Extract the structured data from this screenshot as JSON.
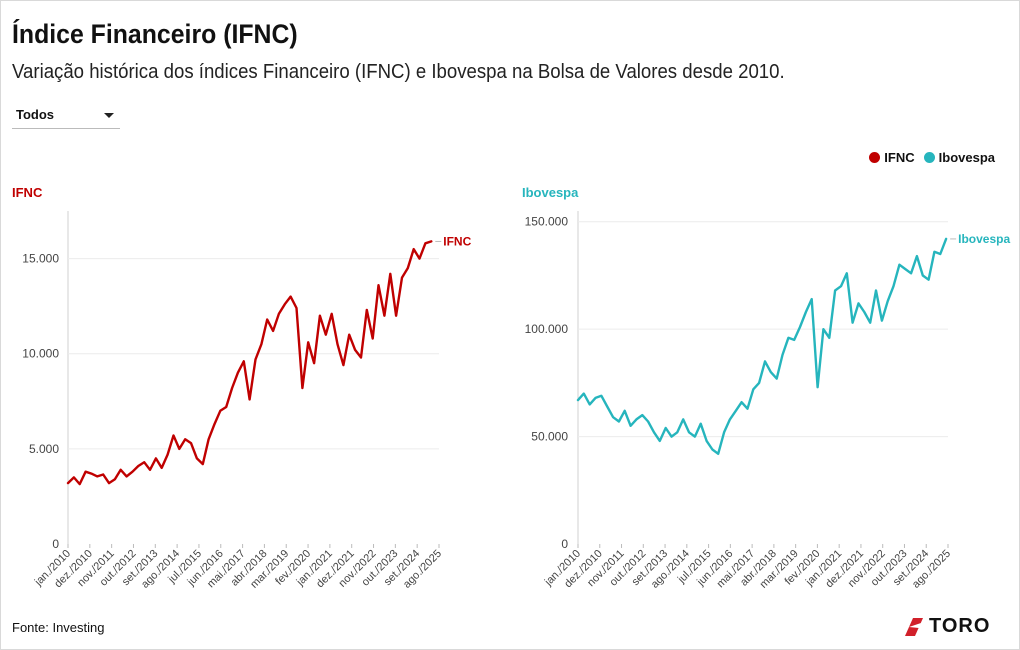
{
  "header": {
    "title": "Índice Financeiro (IFNC)",
    "subtitle": "Variação histórica dos índices Financeiro (IFNC) e Ibovespa na Bolsa de Valores desde 2010."
  },
  "filter": {
    "selected": "Todos"
  },
  "legend": [
    {
      "label": "IFNC",
      "color": "#c00000"
    },
    {
      "label": "Ibovespa",
      "color": "#26b5bd"
    }
  ],
  "footer": {
    "source": "Fonte: Investing",
    "logo_text": "TORO"
  },
  "chart_data": [
    {
      "type": "line",
      "panel_title": "IFNC",
      "color": "#c00000",
      "end_label": "IFNC",
      "ylim": [
        0,
        17500
      ],
      "yticks": [
        0,
        5000,
        10000,
        15000
      ],
      "ytick_labels": [
        "0",
        "5.000",
        "10.000",
        "15.000"
      ],
      "xticks": [
        "jan./2010",
        "dez./2010",
        "nov./2011",
        "out./2012",
        "set./2013",
        "ago./2014",
        "jul./2015",
        "jun./2016",
        "mai./2017",
        "abr./2018",
        "mar./2019",
        "fev./2020",
        "jan./2021",
        "dez./2021",
        "nov./2022",
        "out./2023",
        "set./2024",
        "ago./2025"
      ],
      "x_start": 2010.0,
      "x_end": 2025.83,
      "series": [
        {
          "values": [
            [
              2010.0,
              3200
            ],
            [
              2010.25,
              3500
            ],
            [
              2010.5,
              3150
            ],
            [
              2010.75,
              3800
            ],
            [
              2011.0,
              3700
            ],
            [
              2011.25,
              3550
            ],
            [
              2011.5,
              3650
            ],
            [
              2011.75,
              3200
            ],
            [
              2012.0,
              3400
            ],
            [
              2012.25,
              3900
            ],
            [
              2012.5,
              3550
            ],
            [
              2012.75,
              3800
            ],
            [
              2013.0,
              4100
            ],
            [
              2013.25,
              4300
            ],
            [
              2013.5,
              3900
            ],
            [
              2013.75,
              4500
            ],
            [
              2014.0,
              4000
            ],
            [
              2014.25,
              4700
            ],
            [
              2014.5,
              5700
            ],
            [
              2014.75,
              5000
            ],
            [
              2015.0,
              5500
            ],
            [
              2015.25,
              5300
            ],
            [
              2015.5,
              4500
            ],
            [
              2015.75,
              4200
            ],
            [
              2016.0,
              5500
            ],
            [
              2016.25,
              6300
            ],
            [
              2016.5,
              7000
            ],
            [
              2016.75,
              7200
            ],
            [
              2017.0,
              8200
            ],
            [
              2017.25,
              9000
            ],
            [
              2017.5,
              9600
            ],
            [
              2017.75,
              7600
            ],
            [
              2018.0,
              9700
            ],
            [
              2018.25,
              10500
            ],
            [
              2018.5,
              11800
            ],
            [
              2018.75,
              11200
            ],
            [
              2019.0,
              12100
            ],
            [
              2019.25,
              12600
            ],
            [
              2019.5,
              13000
            ],
            [
              2019.75,
              12400
            ],
            [
              2020.0,
              8200
            ],
            [
              2020.25,
              10600
            ],
            [
              2020.5,
              9500
            ],
            [
              2020.75,
              12000
            ],
            [
              2021.0,
              11000
            ],
            [
              2021.25,
              12100
            ],
            [
              2021.5,
              10500
            ],
            [
              2021.75,
              9400
            ],
            [
              2022.0,
              11000
            ],
            [
              2022.25,
              10200
            ],
            [
              2022.5,
              9800
            ],
            [
              2022.75,
              12300
            ],
            [
              2023.0,
              10800
            ],
            [
              2023.25,
              13600
            ],
            [
              2023.5,
              12000
            ],
            [
              2023.75,
              14200
            ],
            [
              2024.0,
              12000
            ],
            [
              2024.25,
              14000
            ],
            [
              2024.5,
              14500
            ],
            [
              2024.75,
              15500
            ],
            [
              2025.0,
              15000
            ],
            [
              2025.25,
              15800
            ],
            [
              2025.5,
              15900
            ]
          ]
        }
      ]
    },
    {
      "type": "line",
      "panel_title": "Ibovespa",
      "color": "#26b5bd",
      "end_label": "Ibovespa",
      "ylim": [
        0,
        155000
      ],
      "yticks": [
        0,
        50000,
        100000,
        150000
      ],
      "ytick_labels": [
        "0",
        "50.000",
        "100.000",
        "150.000"
      ],
      "xticks": [
        "jan./2010",
        "dez./2010",
        "nov./2011",
        "out./2012",
        "set./2013",
        "ago./2014",
        "jul./2015",
        "jun./2016",
        "mai./2017",
        "abr./2018",
        "mar./2019",
        "fev./2020",
        "jan./2021",
        "dez./2021",
        "nov./2022",
        "out./2023",
        "set./2024",
        "ago./2025"
      ],
      "x_start": 2010.0,
      "x_end": 2025.83,
      "series": [
        {
          "values": [
            [
              2010.0,
              67000
            ],
            [
              2010.25,
              70000
            ],
            [
              2010.5,
              65000
            ],
            [
              2010.75,
              68000
            ],
            [
              2011.0,
              69000
            ],
            [
              2011.25,
              64000
            ],
            [
              2011.5,
              59000
            ],
            [
              2011.75,
              57000
            ],
            [
              2012.0,
              62000
            ],
            [
              2012.25,
              55000
            ],
            [
              2012.5,
              58000
            ],
            [
              2012.75,
              60000
            ],
            [
              2013.0,
              57000
            ],
            [
              2013.25,
              52000
            ],
            [
              2013.5,
              48000
            ],
            [
              2013.75,
              54000
            ],
            [
              2014.0,
              50000
            ],
            [
              2014.25,
              52000
            ],
            [
              2014.5,
              58000
            ],
            [
              2014.75,
              52000
            ],
            [
              2015.0,
              50000
            ],
            [
              2015.25,
              56000
            ],
            [
              2015.5,
              48000
            ],
            [
              2015.75,
              44000
            ],
            [
              2016.0,
              42000
            ],
            [
              2016.25,
              52000
            ],
            [
              2016.5,
              58000
            ],
            [
              2016.75,
              62000
            ],
            [
              2017.0,
              66000
            ],
            [
              2017.25,
              63000
            ],
            [
              2017.5,
              72000
            ],
            [
              2017.75,
              75000
            ],
            [
              2018.0,
              85000
            ],
            [
              2018.25,
              80000
            ],
            [
              2018.5,
              77000
            ],
            [
              2018.75,
              88000
            ],
            [
              2019.0,
              96000
            ],
            [
              2019.25,
              95000
            ],
            [
              2019.5,
              101000
            ],
            [
              2019.75,
              108000
            ],
            [
              2020.0,
              114000
            ],
            [
              2020.25,
              73000
            ],
            [
              2020.5,
              100000
            ],
            [
              2020.75,
              96000
            ],
            [
              2021.0,
              118000
            ],
            [
              2021.25,
              120000
            ],
            [
              2021.5,
              126000
            ],
            [
              2021.75,
              103000
            ],
            [
              2022.0,
              112000
            ],
            [
              2022.25,
              108000
            ],
            [
              2022.5,
              103000
            ],
            [
              2022.75,
              118000
            ],
            [
              2023.0,
              104000
            ],
            [
              2023.25,
              113000
            ],
            [
              2023.5,
              120000
            ],
            [
              2023.75,
              130000
            ],
            [
              2024.0,
              128000
            ],
            [
              2024.25,
              126000
            ],
            [
              2024.5,
              134000
            ],
            [
              2024.75,
              125000
            ],
            [
              2025.0,
              123000
            ],
            [
              2025.25,
              136000
            ],
            [
              2025.5,
              135000
            ],
            [
              2025.75,
              142000
            ]
          ]
        }
      ]
    }
  ]
}
